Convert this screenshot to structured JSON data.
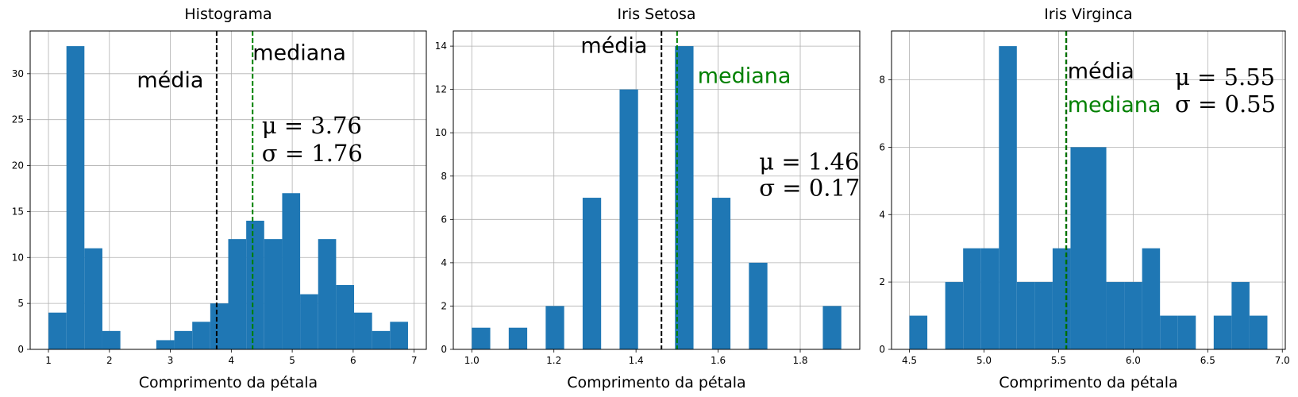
{
  "chart_data": [
    {
      "type": "bar",
      "title": "Histograma",
      "xlabel": "Comprimento da pétala",
      "ylabel": "",
      "xlim": [
        0.7,
        7.2
      ],
      "ylim": [
        0,
        34.65
      ],
      "xticks": [
        1,
        2,
        3,
        4,
        5,
        6,
        7
      ],
      "yticks": [
        0,
        5,
        10,
        15,
        20,
        25,
        30
      ],
      "grid": true,
      "bar_color": "#1f77b4",
      "bins": [
        {
          "x0": 1.0,
          "x1": 1.295,
          "count": 4
        },
        {
          "x0": 1.295,
          "x1": 1.59,
          "count": 33
        },
        {
          "x0": 1.59,
          "x1": 1.885,
          "count": 11
        },
        {
          "x0": 1.885,
          "x1": 2.18,
          "count": 2
        },
        {
          "x0": 2.18,
          "x1": 2.475,
          "count": 0
        },
        {
          "x0": 2.475,
          "x1": 2.77,
          "count": 0
        },
        {
          "x0": 2.77,
          "x1": 3.065,
          "count": 1
        },
        {
          "x0": 3.065,
          "x1": 3.36,
          "count": 2
        },
        {
          "x0": 3.36,
          "x1": 3.655,
          "count": 3
        },
        {
          "x0": 3.655,
          "x1": 3.95,
          "count": 5
        },
        {
          "x0": 3.95,
          "x1": 4.245,
          "count": 12
        },
        {
          "x0": 4.245,
          "x1": 4.54,
          "count": 14
        },
        {
          "x0": 4.54,
          "x1": 4.835,
          "count": 12
        },
        {
          "x0": 4.835,
          "x1": 5.13,
          "count": 17
        },
        {
          "x0": 5.13,
          "x1": 5.425,
          "count": 6
        },
        {
          "x0": 5.425,
          "x1": 5.72,
          "count": 12
        },
        {
          "x0": 5.72,
          "x1": 6.015,
          "count": 7
        },
        {
          "x0": 6.015,
          "x1": 6.31,
          "count": 4
        },
        {
          "x0": 6.31,
          "x1": 6.605,
          "count": 2
        },
        {
          "x0": 6.605,
          "x1": 6.9,
          "count": 3
        }
      ],
      "mean": {
        "value": 3.76,
        "color": "#000000",
        "label": "média",
        "label_color": "#000000",
        "label_x": 2.45,
        "label_y": 28.5
      },
      "median": {
        "value": 4.35,
        "color": "#008000",
        "label": "mediana",
        "label_color": "#000000",
        "label_x": 4.35,
        "label_y": 31.5
      },
      "stats": {
        "mu": "μ = 3.76",
        "sigma": "σ = 1.76",
        "x": 4.5,
        "y_mu": 23.5,
        "y_sigma": 20.5
      }
    },
    {
      "type": "bar",
      "title": "Iris Setosa",
      "xlabel": "Comprimento da pétala",
      "ylabel": "",
      "xlim": [
        0.955,
        1.945
      ],
      "ylim": [
        0,
        14.7
      ],
      "xticks": [
        1.0,
        1.2,
        1.4,
        1.6,
        1.8
      ],
      "xtick_labels": [
        "1.0",
        "1.2",
        "1.4",
        "1.6",
        "1.8"
      ],
      "yticks": [
        0,
        2,
        4,
        6,
        8,
        10,
        12,
        14
      ],
      "grid": true,
      "bar_color": "#1f77b4",
      "bins": [
        {
          "x0": 1.0,
          "x1": 1.045,
          "count": 1
        },
        {
          "x0": 1.09,
          "x1": 1.135,
          "count": 1
        },
        {
          "x0": 1.18,
          "x1": 1.225,
          "count": 2
        },
        {
          "x0": 1.27,
          "x1": 1.315,
          "count": 7
        },
        {
          "x0": 1.36,
          "x1": 1.405,
          "count": 12
        },
        {
          "x0": 1.495,
          "x1": 1.54,
          "count": 14
        },
        {
          "x0": 1.585,
          "x1": 1.63,
          "count": 7
        },
        {
          "x0": 1.675,
          "x1": 1.72,
          "count": 4
        },
        {
          "x0": 1.855,
          "x1": 1.9,
          "count": 2
        }
      ],
      "mean": {
        "value": 1.462,
        "color": "#000000",
        "label": "média",
        "label_color": "#000000",
        "label_x": 1.265,
        "label_y": 13.7
      },
      "median": {
        "value": 1.5,
        "color": "#008000",
        "label": "mediana",
        "label_color": "#008000",
        "label_x": 1.55,
        "label_y": 12.3
      },
      "stats": {
        "mu": "μ = 1.46",
        "sigma": "σ = 0.17",
        "x": 1.7,
        "y_mu": 8.3,
        "y_sigma": 7.1
      }
    },
    {
      "type": "bar",
      "title": "Iris Virginca",
      "xlabel": "Comprimento da pétala",
      "ylabel": "",
      "xlim": [
        4.38,
        7.02
      ],
      "ylim": [
        0,
        9.45
      ],
      "xticks": [
        4.5,
        5.0,
        5.5,
        6.0,
        6.5,
        7.0
      ],
      "xtick_labels": [
        "4.5",
        "5.0",
        "5.5",
        "6.0",
        "6.5",
        "7.0"
      ],
      "yticks": [
        0,
        2,
        4,
        6,
        8
      ],
      "grid": true,
      "bar_color": "#1f77b4",
      "bins": [
        {
          "x0": 4.5,
          "x1": 4.62,
          "count": 1
        },
        {
          "x0": 4.74,
          "x1": 4.86,
          "count": 2
        },
        {
          "x0": 4.86,
          "x1": 4.98,
          "count": 3
        },
        {
          "x0": 4.98,
          "x1": 5.1,
          "count": 3
        },
        {
          "x0": 5.1,
          "x1": 5.22,
          "count": 9
        },
        {
          "x0": 5.22,
          "x1": 5.34,
          "count": 2
        },
        {
          "x0": 5.34,
          "x1": 5.46,
          "count": 2
        },
        {
          "x0": 5.46,
          "x1": 5.58,
          "count": 3
        },
        {
          "x0": 5.58,
          "x1": 5.7,
          "count": 6
        },
        {
          "x0": 5.7,
          "x1": 5.82,
          "count": 6
        },
        {
          "x0": 5.82,
          "x1": 5.94,
          "count": 2
        },
        {
          "x0": 5.94,
          "x1": 6.06,
          "count": 2
        },
        {
          "x0": 6.06,
          "x1": 6.18,
          "count": 3
        },
        {
          "x0": 6.18,
          "x1": 6.3,
          "count": 1
        },
        {
          "x0": 6.3,
          "x1": 6.42,
          "count": 1
        },
        {
          "x0": 6.54,
          "x1": 6.66,
          "count": 1
        },
        {
          "x0": 6.66,
          "x1": 6.78,
          "count": 2
        },
        {
          "x0": 6.78,
          "x1": 6.9,
          "count": 1
        }
      ],
      "mean": {
        "value": 5.552,
        "color": "#000000",
        "label": "média",
        "label_color": "#000000",
        "label_x": 5.56,
        "label_y": 8.05
      },
      "median": {
        "value": 5.55,
        "color": "#008000",
        "label": "mediana",
        "label_color": "#008000",
        "label_x": 5.56,
        "label_y": 7.05
      },
      "stats": {
        "mu": "μ = 5.55",
        "sigma": "σ = 0.55",
        "x": 6.28,
        "y_mu": 7.85,
        "y_sigma": 7.05
      }
    }
  ]
}
